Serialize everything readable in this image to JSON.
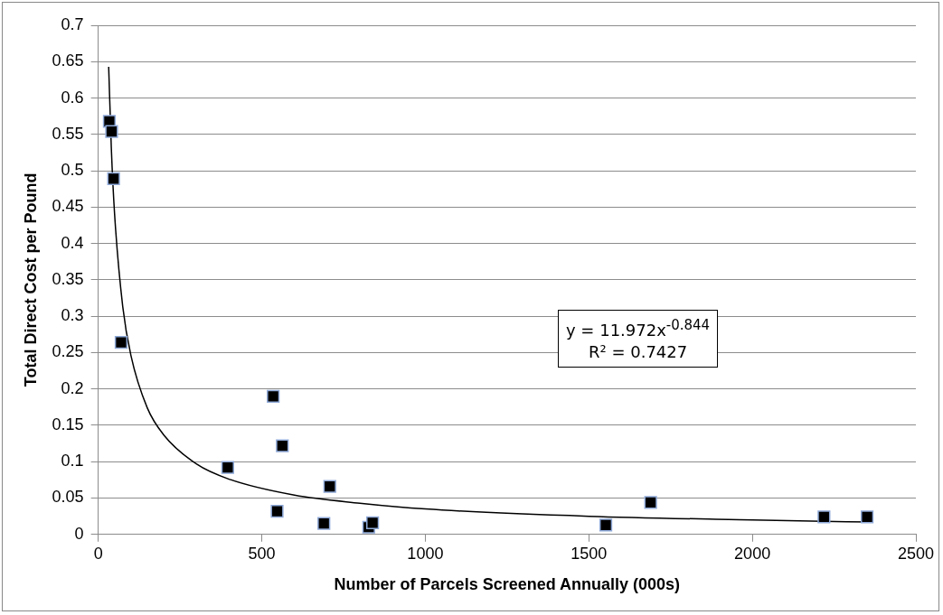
{
  "chart_data": {
    "type": "scatter",
    "xlabel": "Number of Parcels Screened Annually (000s)",
    "ylabel": "Total Direct Cost per Pound",
    "xlim": [
      0,
      2500
    ],
    "xticks": [
      0,
      500,
      1000,
      1500,
      2000,
      2500
    ],
    "ylim": [
      0,
      0.7
    ],
    "yticks": [
      0,
      0.05,
      0.1,
      0.15,
      0.2,
      0.25,
      0.3,
      0.35,
      0.4,
      0.45,
      0.5,
      0.55,
      0.6,
      0.65,
      0.7
    ],
    "grid": "y",
    "legend": false,
    "marker": "square",
    "annotations": [
      "y = 11.972x$^{-0.844}$",
      "R² = 0.7427"
    ],
    "series": [
      {
        "type": "scatter",
        "color": "#000000",
        "x": [
          34,
          41,
          47,
          70,
          535,
          563,
          396,
          708,
          547,
          690,
          827,
          839,
          1552,
          1689,
          2219,
          2351
        ],
        "values": [
          0.568,
          0.554,
          0.489,
          0.264,
          0.19,
          0.122,
          0.092,
          0.066,
          0.032,
          0.015,
          0.01,
          0.016,
          0.013,
          0.044,
          0.024,
          0.024
        ]
      },
      {
        "type": "line",
        "color": "#000000",
        "marker": "none",
        "x": [
          32,
          40,
          50,
          75,
          100,
          150,
          200,
          300,
          400,
          600,
          800,
          1000,
          1500,
          2000,
          2360
        ],
        "values": [
          0.643,
          0.532,
          0.441,
          0.313,
          0.246,
          0.174,
          0.137,
          0.097,
          0.076,
          0.054,
          0.043,
          0.035,
          0.025,
          0.02,
          0.017
        ]
      }
    ]
  }
}
